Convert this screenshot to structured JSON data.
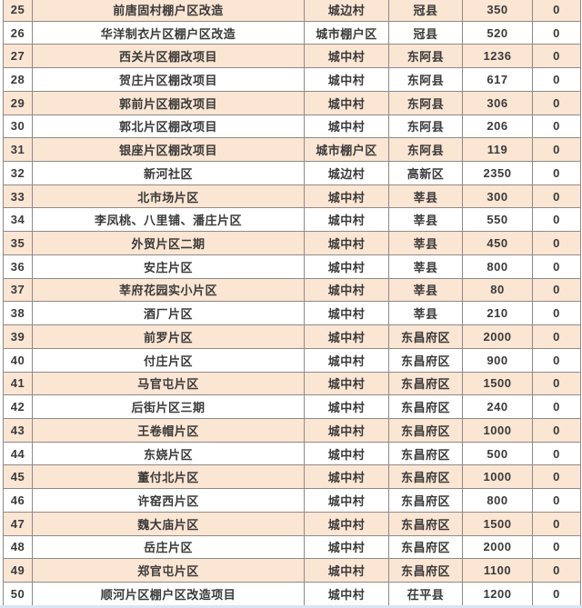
{
  "table": {
    "rows": [
      [
        "25",
        "前唐固村棚户区改造",
        "城边村",
        "冠县",
        "350",
        "0"
      ],
      [
        "26",
        "华洋制衣片区棚户区改造",
        "城市棚户区",
        "冠县",
        "520",
        "0"
      ],
      [
        "27",
        "西关片区棚改项目",
        "城中村",
        "东阿县",
        "1236",
        "0"
      ],
      [
        "28",
        "贺庄片区棚改项目",
        "城中村",
        "东阿县",
        "617",
        "0"
      ],
      [
        "29",
        "郭前片区棚改项目",
        "城中村",
        "东阿县",
        "306",
        "0"
      ],
      [
        "30",
        "郭北片区棚改项目",
        "城中村",
        "东阿县",
        "206",
        "0"
      ],
      [
        "31",
        "银座片区棚改项目",
        "城市棚户区",
        "东阿县",
        "119",
        "0"
      ],
      [
        "32",
        "新河社区",
        "城边村",
        "高新区",
        "2350",
        "0"
      ],
      [
        "33",
        "北市场片区",
        "城中村",
        "莘县",
        "300",
        "0"
      ],
      [
        "34",
        "李凤桃、八里铺、潘庄片区",
        "城中村",
        "莘县",
        "550",
        "0"
      ],
      [
        "35",
        "外贸片区二期",
        "城中村",
        "莘县",
        "450",
        "0"
      ],
      [
        "36",
        "安庄片区",
        "城中村",
        "莘县",
        "800",
        "0"
      ],
      [
        "37",
        "莘府花园实小片区",
        "城中村",
        "莘县",
        "80",
        "0"
      ],
      [
        "38",
        "酒厂片区",
        "城中村",
        "莘县",
        "210",
        "0"
      ],
      [
        "39",
        "前罗片区",
        "城中村",
        "东昌府区",
        "2000",
        "0"
      ],
      [
        "40",
        "付庄片区",
        "城中村",
        "东昌府区",
        "900",
        "0"
      ],
      [
        "41",
        "马官屯片区",
        "城中村",
        "东昌府区",
        "1500",
        "0"
      ],
      [
        "42",
        "后街片区三期",
        "城中村",
        "东昌府区",
        "240",
        "0"
      ],
      [
        "43",
        "王卷帽片区",
        "城中村",
        "东昌府区",
        "1000",
        "0"
      ],
      [
        "44",
        "东娆片区",
        "城中村",
        "东昌府区",
        "500",
        "0"
      ],
      [
        "45",
        "董付北片区",
        "城中村",
        "东昌府区",
        "1000",
        "0"
      ],
      [
        "46",
        "许窑西片区",
        "城中村",
        "东昌府区",
        "800",
        "0"
      ],
      [
        "47",
        "魏大庙片区",
        "城中村",
        "东昌府区",
        "1500",
        "0"
      ],
      [
        "48",
        "岳庄片区",
        "城中村",
        "东昌府区",
        "2000",
        "0"
      ],
      [
        "49",
        "郑官屯片区",
        "城中村",
        "东昌府区",
        "1100",
        "0"
      ],
      [
        "50",
        "顺河片区棚户区改造项目",
        "城中村",
        "茌平县",
        "1200",
        "0"
      ]
    ]
  },
  "colors": {
    "row_alt": "#fbe5d3",
    "row_default": "#ffffff",
    "border": "#8e8a87",
    "text": "#3a3a3a",
    "bottom_strip": "#d9e5f2"
  }
}
